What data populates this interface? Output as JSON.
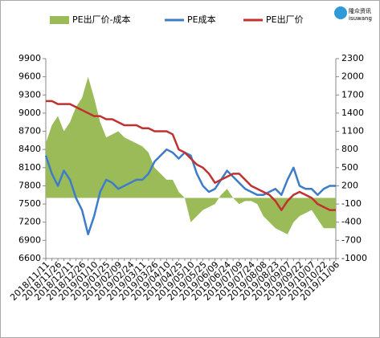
{
  "chart_data": {
    "type": "combo",
    "logo": [
      "隆众资讯",
      "isuwang"
    ],
    "categories": [
      "2018/11/11",
      null,
      "2018/11/26",
      null,
      "2018/12/11",
      null,
      "2018/12/26",
      null,
      "2019/01/10",
      null,
      "2019/01/25",
      null,
      "2019/02/09",
      null,
      "2019/02/24",
      null,
      "2019/03/11",
      null,
      "2019/03/26",
      null,
      "2019/04/10",
      null,
      "2019/04/25",
      null,
      "2019/05/10",
      null,
      "2019/05/25",
      null,
      "2019/06/09",
      null,
      "2019/06/24",
      null,
      "2019/07/09",
      null,
      "2019/07/24",
      null,
      "2019/08/08",
      null,
      "2019/08/23",
      null,
      "2019/09/07",
      null,
      "2019/09/22",
      null,
      "2019/10/07",
      null,
      "2019/10/22",
      null,
      "2019/11/06"
    ],
    "series": [
      {
        "name": "PE出厂价-成本",
        "kind": "area",
        "axis": "y2",
        "color": "#9bbb59",
        "values": [
          900,
          1200,
          1350,
          1100,
          1250,
          1500,
          1650,
          2000,
          1650,
          1250,
          1000,
          1050,
          1100,
          1000,
          950,
          900,
          850,
          750,
          500,
          400,
          300,
          300,
          100,
          0,
          -400,
          -300,
          -200,
          -150,
          -100,
          50,
          150,
          0,
          -100,
          -50,
          -50,
          -100,
          -300,
          -400,
          -500,
          -550,
          -600,
          -400,
          -300,
          -250,
          -200,
          -350,
          -500,
          -500,
          -500
        ]
      },
      {
        "name": "PE成本",
        "kind": "line",
        "color": "#3d7cc9",
        "values": [
          8300,
          8000,
          7800,
          8050,
          7900,
          7600,
          7400,
          7000,
          7300,
          7700,
          7900,
          7850,
          7750,
          7800,
          7850,
          7900,
          7900,
          8000,
          8200,
          8300,
          8400,
          8350,
          8250,
          8350,
          8300,
          8000,
          7800,
          7700,
          7750,
          7900,
          8050,
          7950,
          7850,
          7750,
          7700,
          7650,
          7650,
          7700,
          7750,
          7650,
          7900,
          8100,
          7800,
          7750,
          7750,
          7650,
          7750,
          7800,
          7800
        ]
      },
      {
        "name": "PE出厂价",
        "kind": "line",
        "color": "#c0312f",
        "values": [
          9200,
          9200,
          9150,
          9150,
          9150,
          9100,
          9050,
          9000,
          8950,
          8950,
          8900,
          8900,
          8850,
          8800,
          8800,
          8800,
          8750,
          8750,
          8700,
          8700,
          8700,
          8650,
          8400,
          8350,
          8250,
          8150,
          8100,
          8000,
          7850,
          7900,
          7950,
          8000,
          8000,
          7900,
          7800,
          7750,
          7700,
          7650,
          7550,
          7400,
          7550,
          7650,
          7700,
          7650,
          7600,
          7500,
          7450,
          7400,
          7400
        ]
      }
    ],
    "ylim": [
      6600,
      9900
    ],
    "yticks": [
      6600,
      6900,
      7200,
      7500,
      7800,
      8100,
      8400,
      8700,
      9000,
      9300,
      9600,
      9900
    ],
    "y2lim": [
      -1000,
      2300
    ],
    "y2ticks": [
      -1000,
      -700,
      -400,
      -100,
      200,
      500,
      800,
      1100,
      1400,
      1700,
      2000,
      2300
    ]
  }
}
